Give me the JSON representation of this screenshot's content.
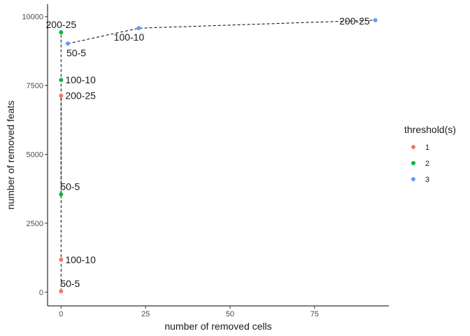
{
  "chart_data": {
    "type": "scatter",
    "xlabel": "number of removed cells",
    "ylabel": "number of removed feats",
    "xlim": [
      -4,
      97
    ],
    "ylim": [
      -500,
      10450
    ],
    "x_ticks": [
      0,
      25,
      50,
      75
    ],
    "y_ticks": [
      0,
      2500,
      5000,
      7500,
      10000
    ],
    "x_tick_labels": [
      "0",
      "25",
      "50",
      "75"
    ],
    "y_tick_labels": [
      "0",
      "2500",
      "5000",
      "7500",
      "10000"
    ],
    "grid": false,
    "legend": {
      "title": "threshold(s)",
      "placement": "right"
    },
    "series": [
      {
        "name": "1",
        "color": "#F8766D",
        "points": [
          {
            "x": 0,
            "y": 30,
            "label": "50-5"
          },
          {
            "x": 0,
            "y": 1180,
            "label": "100-10"
          },
          {
            "x": 0,
            "y": 7130,
            "label": "200-25"
          }
        ]
      },
      {
        "name": "2",
        "color": "#00BA38",
        "points": [
          {
            "x": 0,
            "y": 3550,
            "label": "50-5"
          },
          {
            "x": 0,
            "y": 7700,
            "label": "100-10"
          },
          {
            "x": 0,
            "y": 9430,
            "label": "200-25"
          }
        ]
      },
      {
        "name": "3",
        "color": "#619CFF",
        "points": [
          {
            "x": 2,
            "y": 9020,
            "label": "50-5"
          },
          {
            "x": 23,
            "y": 9580,
            "label": "100-10"
          },
          {
            "x": 93,
            "y": 9870,
            "label": "200-25"
          }
        ]
      }
    ]
  }
}
